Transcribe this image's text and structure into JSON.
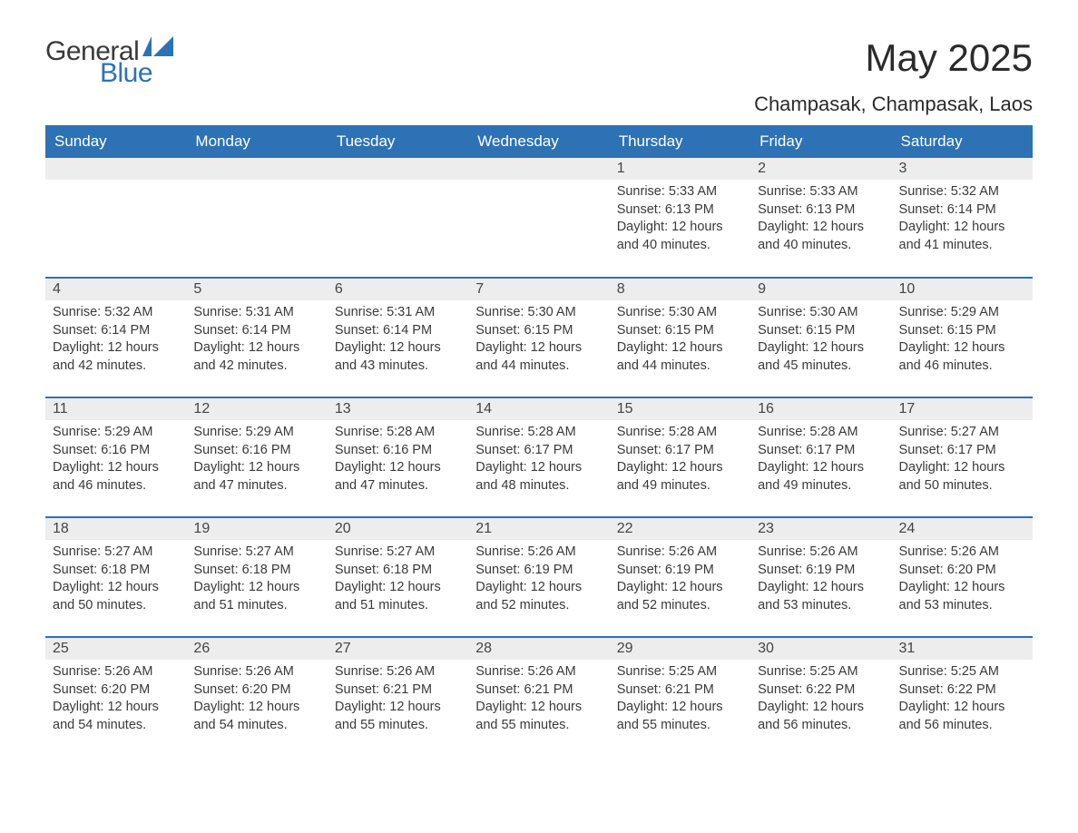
{
  "brand": {
    "word1": "General",
    "word2": "Blue",
    "flag_color": "#2d72b5"
  },
  "title": "May 2025",
  "location": "Champasak, Champasak, Laos",
  "colors": {
    "header_bg": "#2d72b5",
    "header_text": "#ffffff",
    "daynum_bg": "#ededed",
    "text": "#3a3a3a",
    "row_border": "#2d72b5",
    "page_bg": "#ffffff"
  },
  "weekdays": [
    "Sunday",
    "Monday",
    "Tuesday",
    "Wednesday",
    "Thursday",
    "Friday",
    "Saturday"
  ],
  "weeks": [
    [
      null,
      null,
      null,
      null,
      {
        "n": "1",
        "sunrise": "Sunrise: 5:33 AM",
        "sunset": "Sunset: 6:13 PM",
        "day1": "Daylight: 12 hours",
        "day2": "and 40 minutes."
      },
      {
        "n": "2",
        "sunrise": "Sunrise: 5:33 AM",
        "sunset": "Sunset: 6:13 PM",
        "day1": "Daylight: 12 hours",
        "day2": "and 40 minutes."
      },
      {
        "n": "3",
        "sunrise": "Sunrise: 5:32 AM",
        "sunset": "Sunset: 6:14 PM",
        "day1": "Daylight: 12 hours",
        "day2": "and 41 minutes."
      }
    ],
    [
      {
        "n": "4",
        "sunrise": "Sunrise: 5:32 AM",
        "sunset": "Sunset: 6:14 PM",
        "day1": "Daylight: 12 hours",
        "day2": "and 42 minutes."
      },
      {
        "n": "5",
        "sunrise": "Sunrise: 5:31 AM",
        "sunset": "Sunset: 6:14 PM",
        "day1": "Daylight: 12 hours",
        "day2": "and 42 minutes."
      },
      {
        "n": "6",
        "sunrise": "Sunrise: 5:31 AM",
        "sunset": "Sunset: 6:14 PM",
        "day1": "Daylight: 12 hours",
        "day2": "and 43 minutes."
      },
      {
        "n": "7",
        "sunrise": "Sunrise: 5:30 AM",
        "sunset": "Sunset: 6:15 PM",
        "day1": "Daylight: 12 hours",
        "day2": "and 44 minutes."
      },
      {
        "n": "8",
        "sunrise": "Sunrise: 5:30 AM",
        "sunset": "Sunset: 6:15 PM",
        "day1": "Daylight: 12 hours",
        "day2": "and 44 minutes."
      },
      {
        "n": "9",
        "sunrise": "Sunrise: 5:30 AM",
        "sunset": "Sunset: 6:15 PM",
        "day1": "Daylight: 12 hours",
        "day2": "and 45 minutes."
      },
      {
        "n": "10",
        "sunrise": "Sunrise: 5:29 AM",
        "sunset": "Sunset: 6:15 PM",
        "day1": "Daylight: 12 hours",
        "day2": "and 46 minutes."
      }
    ],
    [
      {
        "n": "11",
        "sunrise": "Sunrise: 5:29 AM",
        "sunset": "Sunset: 6:16 PM",
        "day1": "Daylight: 12 hours",
        "day2": "and 46 minutes."
      },
      {
        "n": "12",
        "sunrise": "Sunrise: 5:29 AM",
        "sunset": "Sunset: 6:16 PM",
        "day1": "Daylight: 12 hours",
        "day2": "and 47 minutes."
      },
      {
        "n": "13",
        "sunrise": "Sunrise: 5:28 AM",
        "sunset": "Sunset: 6:16 PM",
        "day1": "Daylight: 12 hours",
        "day2": "and 47 minutes."
      },
      {
        "n": "14",
        "sunrise": "Sunrise: 5:28 AM",
        "sunset": "Sunset: 6:17 PM",
        "day1": "Daylight: 12 hours",
        "day2": "and 48 minutes."
      },
      {
        "n": "15",
        "sunrise": "Sunrise: 5:28 AM",
        "sunset": "Sunset: 6:17 PM",
        "day1": "Daylight: 12 hours",
        "day2": "and 49 minutes."
      },
      {
        "n": "16",
        "sunrise": "Sunrise: 5:28 AM",
        "sunset": "Sunset: 6:17 PM",
        "day1": "Daylight: 12 hours",
        "day2": "and 49 minutes."
      },
      {
        "n": "17",
        "sunrise": "Sunrise: 5:27 AM",
        "sunset": "Sunset: 6:17 PM",
        "day1": "Daylight: 12 hours",
        "day2": "and 50 minutes."
      }
    ],
    [
      {
        "n": "18",
        "sunrise": "Sunrise: 5:27 AM",
        "sunset": "Sunset: 6:18 PM",
        "day1": "Daylight: 12 hours",
        "day2": "and 50 minutes."
      },
      {
        "n": "19",
        "sunrise": "Sunrise: 5:27 AM",
        "sunset": "Sunset: 6:18 PM",
        "day1": "Daylight: 12 hours",
        "day2": "and 51 minutes."
      },
      {
        "n": "20",
        "sunrise": "Sunrise: 5:27 AM",
        "sunset": "Sunset: 6:18 PM",
        "day1": "Daylight: 12 hours",
        "day2": "and 51 minutes."
      },
      {
        "n": "21",
        "sunrise": "Sunrise: 5:26 AM",
        "sunset": "Sunset: 6:19 PM",
        "day1": "Daylight: 12 hours",
        "day2": "and 52 minutes."
      },
      {
        "n": "22",
        "sunrise": "Sunrise: 5:26 AM",
        "sunset": "Sunset: 6:19 PM",
        "day1": "Daylight: 12 hours",
        "day2": "and 52 minutes."
      },
      {
        "n": "23",
        "sunrise": "Sunrise: 5:26 AM",
        "sunset": "Sunset: 6:19 PM",
        "day1": "Daylight: 12 hours",
        "day2": "and 53 minutes."
      },
      {
        "n": "24",
        "sunrise": "Sunrise: 5:26 AM",
        "sunset": "Sunset: 6:20 PM",
        "day1": "Daylight: 12 hours",
        "day2": "and 53 minutes."
      }
    ],
    [
      {
        "n": "25",
        "sunrise": "Sunrise: 5:26 AM",
        "sunset": "Sunset: 6:20 PM",
        "day1": "Daylight: 12 hours",
        "day2": "and 54 minutes."
      },
      {
        "n": "26",
        "sunrise": "Sunrise: 5:26 AM",
        "sunset": "Sunset: 6:20 PM",
        "day1": "Daylight: 12 hours",
        "day2": "and 54 minutes."
      },
      {
        "n": "27",
        "sunrise": "Sunrise: 5:26 AM",
        "sunset": "Sunset: 6:21 PM",
        "day1": "Daylight: 12 hours",
        "day2": "and 55 minutes."
      },
      {
        "n": "28",
        "sunrise": "Sunrise: 5:26 AM",
        "sunset": "Sunset: 6:21 PM",
        "day1": "Daylight: 12 hours",
        "day2": "and 55 minutes."
      },
      {
        "n": "29",
        "sunrise": "Sunrise: 5:25 AM",
        "sunset": "Sunset: 6:21 PM",
        "day1": "Daylight: 12 hours",
        "day2": "and 55 minutes."
      },
      {
        "n": "30",
        "sunrise": "Sunrise: 5:25 AM",
        "sunset": "Sunset: 6:22 PM",
        "day1": "Daylight: 12 hours",
        "day2": "and 56 minutes."
      },
      {
        "n": "31",
        "sunrise": "Sunrise: 5:25 AM",
        "sunset": "Sunset: 6:22 PM",
        "day1": "Daylight: 12 hours",
        "day2": "and 56 minutes."
      }
    ]
  ]
}
